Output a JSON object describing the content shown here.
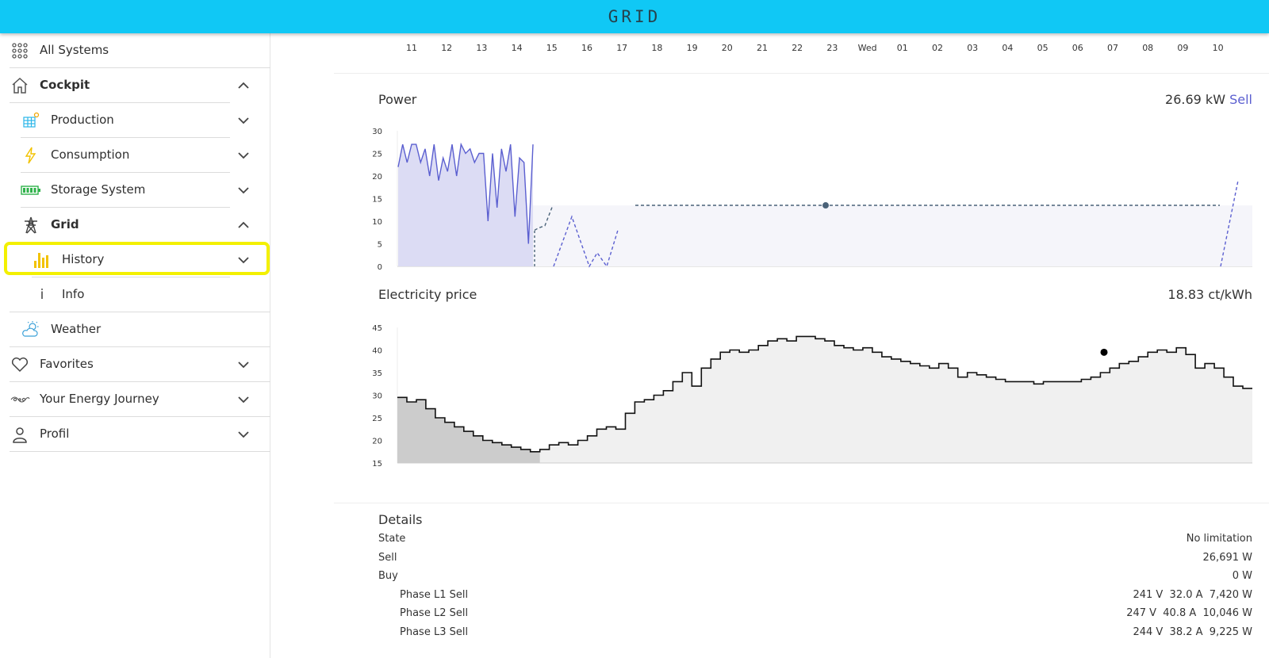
{
  "header": {
    "logo_text": "GRID"
  },
  "sidebar": {
    "items": [
      {
        "label": "All Systems",
        "icon": "grid-dots-icon"
      },
      {
        "label": "Cockpit",
        "icon": "home-icon"
      },
      {
        "label": "Production",
        "icon": "solar-panel-icon"
      },
      {
        "label": "Consumption",
        "icon": "lightning-icon"
      },
      {
        "label": "Storage System",
        "icon": "battery-icon"
      },
      {
        "label": "Grid",
        "icon": "power-tower-icon"
      },
      {
        "label": "History",
        "icon": "bar-chart-icon"
      },
      {
        "label": "Info",
        "icon": "info-icon",
        "glyph": "i"
      },
      {
        "label": "Weather",
        "icon": "cloud-sun-icon"
      },
      {
        "label": "Favorites",
        "icon": "heart-icon"
      },
      {
        "label": "Your Energy Journey",
        "icon": "energy-journey-icon"
      },
      {
        "label": "Profil",
        "icon": "user-icon"
      }
    ],
    "highlight_color": "#f3f000"
  },
  "time_axis": [
    "11",
    "12",
    "13",
    "14",
    "15",
    "16",
    "17",
    "18",
    "19",
    "20",
    "21",
    "22",
    "23",
    "Wed",
    "01",
    "02",
    "03",
    "04",
    "05",
    "06",
    "07",
    "08",
    "09",
    "10"
  ],
  "power": {
    "title": "Power",
    "value": "26.69 kW",
    "mode": "Sell",
    "y_ticks": [
      "30",
      "25",
      "20",
      "15",
      "10",
      "5",
      "0"
    ]
  },
  "price": {
    "title": "Electricity price",
    "value": "18.83 ct/kWh",
    "y_ticks": [
      "45",
      "40",
      "35",
      "30",
      "25",
      "20",
      "15"
    ]
  },
  "chart_data": [
    {
      "type": "line",
      "ylim": [
        0,
        30
      ],
      "series": [
        {
          "values": [
            22,
            27,
            23,
            27,
            27,
            23,
            26,
            20,
            27,
            19,
            24,
            21,
            27,
            20,
            27,
            25,
            26,
            23,
            25,
            25,
            10,
            25,
            13,
            26,
            21,
            27,
            11,
            24,
            23,
            5,
            27
          ]
        },
        {
          "values": [
            8,
            8.5,
            9,
            13.5,
            0,
            11,
            0,
            3,
            0,
            8,
            13.5,
            13.5,
            13.5,
            13.5,
            0,
            19
          ]
        }
      ],
      "colors": {
        "measured": "#5b5fd0",
        "forecast": "#4a6278"
      }
    },
    {
      "type": "line",
      "ylim": [
        15,
        45
      ],
      "series": [
        {
          "values": [
            29.5,
            28.5,
            29,
            27,
            25,
            24,
            23,
            22,
            21,
            20,
            19.5,
            19,
            18.5,
            18,
            17.5,
            18,
            19,
            19.5,
            19,
            20,
            21,
            22.5,
            23,
            22.5,
            26,
            28.5,
            29,
            30,
            31,
            33,
            35,
            32,
            36,
            38,
            39.5,
            40,
            39.5,
            40,
            41,
            42,
            42.5,
            42,
            43,
            43,
            42.5,
            42,
            41,
            40.5,
            40,
            40.5,
            39.5,
            38.5,
            38,
            37.5,
            37,
            36.5,
            36,
            37,
            36,
            34,
            35,
            34.5,
            34,
            33.5,
            33,
            33,
            33,
            32.5,
            33,
            33,
            33,
            33,
            33.5,
            34,
            35,
            36,
            37,
            37.5,
            38.5,
            39.5,
            40,
            39.5,
            40.5,
            39,
            36,
            37,
            36,
            34,
            32,
            31.5
          ]
        }
      ],
      "colors": {
        "line": "#111111"
      }
    }
  ],
  "details": {
    "title": "Details",
    "rows": [
      {
        "label": "State",
        "value": "No limitation"
      },
      {
        "label": "Sell",
        "value": "26,691 W"
      },
      {
        "label": "Buy",
        "value": "0 W"
      },
      {
        "label": "Phase L1 Sell",
        "value": "241 V  32.0 A  7,420 W"
      },
      {
        "label": "Phase L2 Sell",
        "value": "247 V  40.8 A  10,046 W"
      },
      {
        "label": "Phase L3 Sell",
        "value": "244 V  38.2 A  9,225 W"
      }
    ]
  }
}
